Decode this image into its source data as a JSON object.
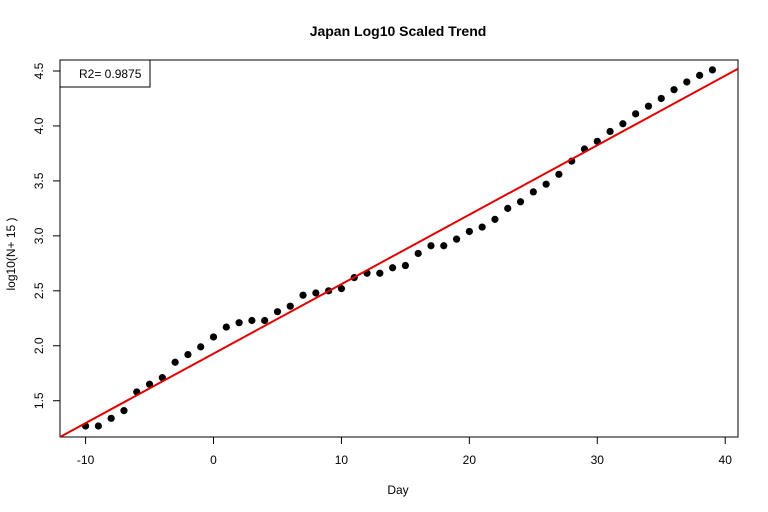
{
  "chart_data": {
    "type": "scatter",
    "title": "Japan  Log10 Scaled Trend",
    "xlabel": "Day",
    "ylabel": "log10(N+ 15 )",
    "xlim": [
      -12,
      41
    ],
    "ylim": [
      1.17,
      4.6
    ],
    "x_ticks": [
      -10,
      0,
      10,
      20,
      30,
      40
    ],
    "y_ticks": [
      1.5,
      2.0,
      2.5,
      3.0,
      3.5,
      4.0,
      4.5
    ],
    "legend": {
      "text": "R2= 0.9875",
      "position": "top-left"
    },
    "colors": {
      "points": "#000000",
      "trend": "#e00000"
    },
    "trend_line": {
      "x": [
        -12,
        41
      ],
      "y": [
        1.17,
        4.52
      ]
    },
    "points": {
      "x": [
        -10,
        -9,
        -8,
        -7,
        -6,
        -5,
        -4,
        -3,
        -2,
        -1,
        0,
        1,
        2,
        3,
        4,
        5,
        6,
        7,
        8,
        9,
        10,
        11,
        12,
        13,
        14,
        15,
        16,
        17,
        18,
        19,
        20,
        21,
        22,
        23,
        24,
        25,
        26,
        27,
        28,
        29,
        30,
        31,
        32,
        33,
        34,
        35,
        36,
        37,
        38,
        39
      ],
      "y": [
        1.27,
        1.27,
        1.34,
        1.41,
        1.58,
        1.65,
        1.71,
        1.85,
        1.92,
        1.99,
        2.08,
        2.17,
        2.21,
        2.23,
        2.23,
        2.31,
        2.36,
        2.46,
        2.48,
        2.5,
        2.52,
        2.62,
        2.66,
        2.66,
        2.71,
        2.73,
        2.84,
        2.91,
        2.91,
        2.97,
        3.04,
        3.08,
        3.15,
        3.25,
        3.31,
        3.4,
        3.47,
        3.56,
        3.68,
        3.79,
        3.86,
        3.95,
        4.02,
        4.11,
        4.18,
        4.25,
        4.33,
        4.4,
        4.46,
        4.51
      ]
    }
  }
}
